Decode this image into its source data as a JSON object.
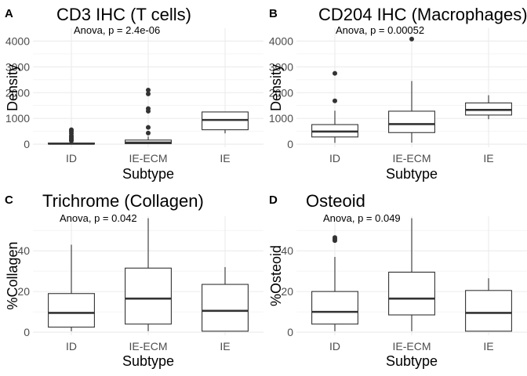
{
  "chart_data": [
    {
      "panel": "A",
      "type": "boxplot",
      "title": "CD3 IHC (T cells)",
      "annotation": "Anova, p = 2.4e-06",
      "xlabel": "Subtype",
      "ylabel": "Density",
      "categories": [
        "ID",
        "IE-ECM",
        "IE"
      ],
      "ylim": [
        -120,
        4500
      ],
      "yticks": [
        0,
        1000,
        2000,
        3000,
        4000
      ],
      "ytick_labels": [
        "0",
        "1000",
        "2000",
        "3000",
        "4000"
      ],
      "grid": true,
      "boxes": [
        {
          "min": 0,
          "q1": 5,
          "median": 20,
          "q3": 45,
          "max": 100,
          "outliers": [
            130,
            170,
            220,
            280,
            330,
            420,
            500,
            560
          ]
        },
        {
          "min": 0,
          "q1": 20,
          "median": 60,
          "q3": 160,
          "max": 300,
          "outliers": [
            430,
            650,
            1280,
            1380,
            1950,
            2100
          ]
        },
        {
          "min": 420,
          "q1": 560,
          "median": 940,
          "q3": 1250,
          "max": 1250,
          "outliers": []
        }
      ]
    },
    {
      "panel": "B",
      "type": "boxplot",
      "title": "CD204 IHC (Macrophages)",
      "annotation": "Anova, p = 0.00052",
      "xlabel": "Subtype",
      "ylabel": "Density",
      "categories": [
        "ID",
        "IE-ECM",
        "IE"
      ],
      "ylim": [
        -120,
        4500
      ],
      "yticks": [
        0,
        1000,
        2000,
        3000,
        4000
      ],
      "ytick_labels": [
        "0",
        "1000",
        "2000",
        "3000",
        "4000"
      ],
      "grid": true,
      "boxes": [
        {
          "min": 50,
          "q1": 280,
          "median": 490,
          "q3": 760,
          "max": 1300,
          "outliers": [
            1680,
            2750
          ]
        },
        {
          "min": 60,
          "q1": 450,
          "median": 780,
          "q3": 1280,
          "max": 2450,
          "outliers": [
            4080
          ]
        },
        {
          "min": 970,
          "q1": 1130,
          "median": 1330,
          "q3": 1600,
          "max": 1900,
          "outliers": []
        }
      ]
    },
    {
      "panel": "C",
      "type": "boxplot",
      "title": "Trichrome (Collagen)",
      "annotation": "Anova, p = 0.042",
      "xlabel": "Subtype",
      "ylabel": "%Collagen",
      "categories": [
        "ID",
        "IE-ECM",
        "IE"
      ],
      "ylim": [
        -1.5,
        57
      ],
      "yticks": [
        0,
        20,
        40
      ],
      "ytick_labels": [
        "0",
        "20",
        "40"
      ],
      "grid": true,
      "boxes": [
        {
          "min": 0.5,
          "q1": 2.5,
          "median": 9.5,
          "q3": 19,
          "max": 43,
          "outliers": []
        },
        {
          "min": 0.5,
          "q1": 4,
          "median": 16.5,
          "q3": 31.5,
          "max": 56,
          "outliers": []
        },
        {
          "min": 0.5,
          "q1": 0.5,
          "median": 10.5,
          "q3": 23.5,
          "max": 32,
          "outliers": []
        }
      ]
    },
    {
      "panel": "D",
      "type": "boxplot",
      "title": "Osteoid",
      "annotation": "Anova, p = 0.049",
      "xlabel": "Subtype",
      "ylabel": "%Osteoid",
      "categories": [
        "ID",
        "IE-ECM",
        "IE"
      ],
      "ylim": [
        -1.5,
        57
      ],
      "yticks": [
        0,
        20,
        40
      ],
      "ytick_labels": [
        "0",
        "20",
        "40"
      ],
      "grid": true,
      "boxes": [
        {
          "min": 0.5,
          "q1": 4,
          "median": 10,
          "q3": 20,
          "max": 37,
          "outliers": [
            45,
            45.8,
            46.5
          ]
        },
        {
          "min": 0.5,
          "q1": 8.5,
          "median": 16.5,
          "q3": 29.5,
          "max": 56,
          "outliers": []
        },
        {
          "min": 0.5,
          "q1": 0.5,
          "median": 9.5,
          "q3": 20.5,
          "max": 26.5,
          "outliers": []
        }
      ]
    }
  ]
}
